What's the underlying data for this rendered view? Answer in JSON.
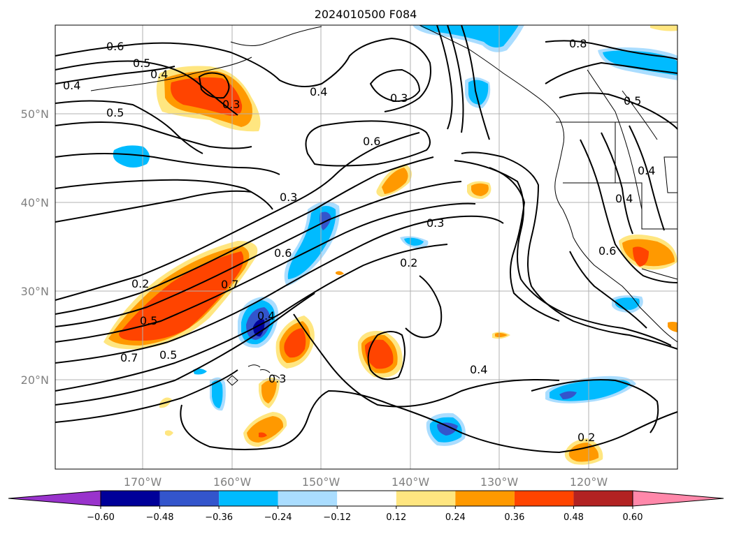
{
  "title": "2024010500 F084",
  "lat_labels": [
    "50°N",
    "40°N",
    "30°N",
    "20°N"
  ],
  "lon_labels": [
    "170°W",
    "160°W",
    "150°W",
    "140°W",
    "130°W",
    "120°W"
  ],
  "colorbar": {
    "tick_labels": [
      "−0.60",
      "−0.48",
      "−0.36",
      "−0.24",
      "−0.12",
      "0.12",
      "0.24",
      "0.36",
      "0.48",
      "0.60"
    ],
    "colors": [
      "#9933cc",
      "#000099",
      "#3355cc",
      "#00bbff",
      "#aaddff",
      "#ffffff",
      "#ffe680",
      "#ff9900",
      "#ff4400",
      "#b22222",
      "#ff88aa"
    ]
  },
  "contour_labels": [
    "0.6",
    "0.5",
    "0.4",
    "0.4",
    "0.5",
    "0.3",
    "0.4",
    "0.3",
    "0.6",
    "0.8",
    "0.5",
    "0.3",
    "0.4",
    "0.3",
    "0.6",
    "0.2",
    "0.7",
    "0.5",
    "0.2",
    "0.4",
    "0.7",
    "0.5",
    "0.3",
    "0.4",
    "0.2",
    "0.6",
    "0.4"
  ],
  "chart_data": {
    "type": "map",
    "title": "2024010500 F084",
    "colorbar_levels": [
      -0.6,
      -0.48,
      -0.36,
      -0.24,
      -0.12,
      0.12,
      0.24,
      0.36,
      0.48,
      0.6
    ],
    "lat_ticks": [
      50,
      40,
      30,
      20
    ],
    "lon_ticks": [
      -170,
      -160,
      -150,
      -140,
      -130,
      -120
    ]
  }
}
